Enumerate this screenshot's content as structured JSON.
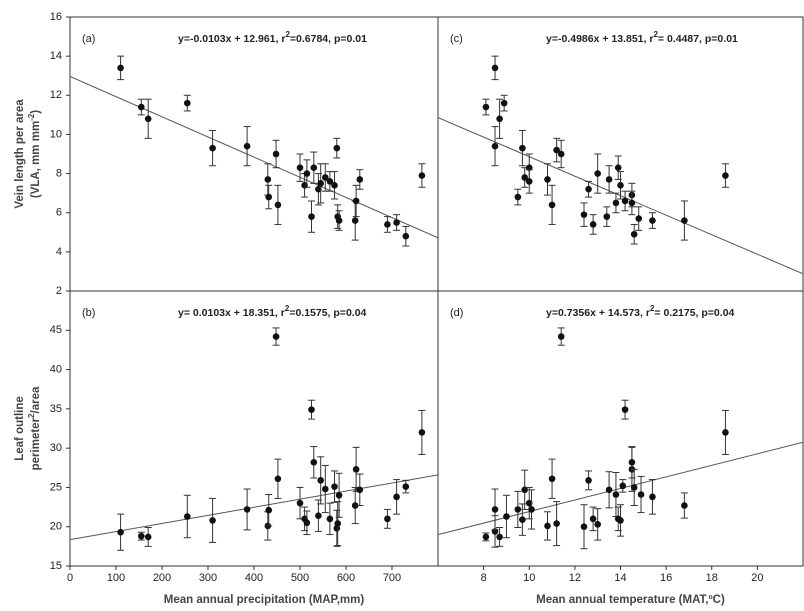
{
  "chart_data": [
    {
      "type": "scatter",
      "label": "(a)",
      "annotation": [
        "y=-0.0103x + 12.961, r",
        "2",
        "=0.6784, p=0.01"
      ],
      "ylabel": [
        [
          "Vein length per area"
        ],
        [
          "(VLA, mm mm",
          "-2",
          ")"
        ]
      ],
      "xlim": [
        0,
        800
      ],
      "ylim": [
        2,
        16
      ],
      "yticks": [
        2,
        4,
        6,
        8,
        10,
        12,
        14,
        16
      ],
      "fit": {
        "slope": -0.0103,
        "intercept": 12.961
      },
      "color": "#111111",
      "line_color": "#555555",
      "x": [
        110,
        155,
        170,
        255,
        310,
        385,
        430,
        432,
        448,
        452,
        500,
        510,
        515,
        525,
        530,
        540,
        545,
        555,
        565,
        575,
        580,
        582,
        585,
        620,
        622,
        630,
        690,
        710,
        730,
        765
      ],
      "values": [
        13.4,
        11.4,
        10.8,
        11.6,
        9.3,
        9.4,
        7.7,
        6.8,
        9.0,
        6.4,
        8.3,
        7.4,
        8.0,
        5.8,
        8.3,
        7.2,
        7.5,
        7.8,
        7.6,
        7.4,
        9.3,
        5.8,
        5.6,
        5.6,
        6.6,
        7.7,
        5.4,
        5.5,
        4.8,
        7.9
      ],
      "errors": [
        0.6,
        0.4,
        1.0,
        0.4,
        0.9,
        1.0,
        0.8,
        0.6,
        0.7,
        1.0,
        0.7,
        0.6,
        0.7,
        0.8,
        0.8,
        0.8,
        1.0,
        0.7,
        0.5,
        0.7,
        0.5,
        0.6,
        0.5,
        1.0,
        0.8,
        0.5,
        0.4,
        0.4,
        0.5,
        0.6
      ]
    },
    {
      "type": "scatter",
      "label": "(c)",
      "annotation": [
        "y=-0.4986x + 13.851, r",
        "2",
        "= 0.4487, p=0.01"
      ],
      "xlim": [
        6,
        22
      ],
      "ylim": [
        2,
        16
      ],
      "fit": {
        "slope": -0.4986,
        "intercept": 13.851
      },
      "color": "#111111",
      "line_color": "#555555",
      "x": [
        8.1,
        8.5,
        8.7,
        8.9,
        8.5,
        9.5,
        9.7,
        9.8,
        10.0,
        10.0,
        10.8,
        11.0,
        11.2,
        11.4,
        12.4,
        12.6,
        12.8,
        13.0,
        13.4,
        13.5,
        13.8,
        13.9,
        14.0,
        14.2,
        14.5,
        14.5,
        14.6,
        14.8,
        15.4,
        16.8,
        18.6
      ],
      "values": [
        11.4,
        13.4,
        10.8,
        11.6,
        9.4,
        6.8,
        9.3,
        7.8,
        8.3,
        7.6,
        7.7,
        6.4,
        9.2,
        9.0,
        5.9,
        7.2,
        5.4,
        8.0,
        5.8,
        7.7,
        6.5,
        8.3,
        7.4,
        6.6,
        6.9,
        6.5,
        4.9,
        5.7,
        5.6,
        5.6,
        7.9
      ],
      "errors": [
        0.4,
        0.6,
        1.0,
        0.4,
        1.0,
        0.4,
        0.9,
        0.5,
        0.7,
        0.6,
        0.8,
        1.0,
        0.6,
        0.7,
        0.6,
        0.4,
        0.5,
        1.0,
        0.5,
        0.7,
        0.5,
        0.6,
        0.7,
        0.5,
        0.6,
        0.6,
        0.5,
        0.6,
        0.4,
        1.0,
        0.6
      ]
    },
    {
      "type": "scatter",
      "label": "(b)",
      "annotation": [
        "y= 0.0103x + 18.351, r",
        "2",
        "=0.1575, p=0.04"
      ],
      "ylabel": [
        [
          "Leaf outline"
        ],
        [
          "perimeter",
          "2",
          "/area"
        ]
      ],
      "xlabel": "Mean annual precipitation (MAP,mm)",
      "xlim": [
        0,
        800
      ],
      "xticks": [
        0,
        100,
        200,
        300,
        400,
        500,
        600,
        700
      ],
      "ylim": [
        15,
        50
      ],
      "yticks": [
        15,
        20,
        25,
        30,
        35,
        40,
        45
      ],
      "fit": {
        "slope": 0.0103,
        "intercept": 18.351
      },
      "color": "#111111",
      "line_color": "#555555",
      "x": [
        110,
        155,
        170,
        255,
        310,
        385,
        430,
        432,
        448,
        452,
        500,
        510,
        515,
        525,
        530,
        540,
        545,
        555,
        565,
        575,
        580,
        582,
        585,
        620,
        622,
        630,
        690,
        710,
        730,
        765
      ],
      "values": [
        19.3,
        18.8,
        18.7,
        21.3,
        20.8,
        22.2,
        20.1,
        22.1,
        44.2,
        26.1,
        23.0,
        21.0,
        20.5,
        34.9,
        28.2,
        21.4,
        25.9,
        24.8,
        21.0,
        25.1,
        19.8,
        20.4,
        24.0,
        22.7,
        27.3,
        24.7,
        21.0,
        23.8,
        25.1,
        32.0
      ],
      "errors": [
        2.3,
        0.5,
        1.2,
        2.7,
        2.8,
        2.6,
        1.8,
        2.0,
        1.1,
        2.5,
        2.0,
        1.5,
        1.5,
        1.2,
        2.0,
        2.0,
        3.0,
        3.0,
        2.0,
        2.0,
        2.3,
        2.8,
        2.8,
        2.3,
        2.8,
        2.0,
        1.2,
        2.2,
        0.8,
        2.8
      ]
    },
    {
      "type": "scatter",
      "label": "(d)",
      "annotation": [
        "y=0.7356x + 14.573, r",
        "2",
        "= 0.2175, p=0.04"
      ],
      "xlabel": "Mean annual temperature (MAT,ºC)",
      "xlim": [
        6,
        22
      ],
      "xticks": [
        8,
        10,
        12,
        14,
        16,
        18,
        20
      ],
      "ylim": [
        15,
        50
      ],
      "fit": {
        "slope": 0.7356,
        "intercept": 14.573
      },
      "color": "#111111",
      "line_color": "#555555",
      "x": [
        8.1,
        8.5,
        8.5,
        8.7,
        9.0,
        9.5,
        9.7,
        9.8,
        10.0,
        10.1,
        10.8,
        11.0,
        11.2,
        11.4,
        12.4,
        12.6,
        12.8,
        13.0,
        13.5,
        13.8,
        13.9,
        14.0,
        14.1,
        14.2,
        14.5,
        14.6,
        14.5,
        14.9,
        15.4,
        16.8,
        18.6
      ],
      "values": [
        18.7,
        19.4,
        22.2,
        18.7,
        21.3,
        22.2,
        20.9,
        24.7,
        23.0,
        22.2,
        20.1,
        26.1,
        20.4,
        44.2,
        20.0,
        25.9,
        21.0,
        20.3,
        24.7,
        24.1,
        21.0,
        20.8,
        25.2,
        34.9,
        27.3,
        25.0,
        28.2,
        24.1,
        23.8,
        22.7,
        32.0
      ],
      "errors": [
        0.5,
        2.0,
        2.6,
        1.2,
        2.7,
        2.3,
        2.0,
        2.5,
        2.0,
        2.5,
        1.8,
        2.5,
        2.8,
        1.1,
        2.8,
        1.2,
        1.5,
        2.0,
        2.3,
        2.8,
        1.5,
        2.0,
        0.8,
        1.2,
        2.8,
        2.3,
        2.0,
        2.3,
        2.2,
        1.6,
        2.8
      ]
    }
  ]
}
